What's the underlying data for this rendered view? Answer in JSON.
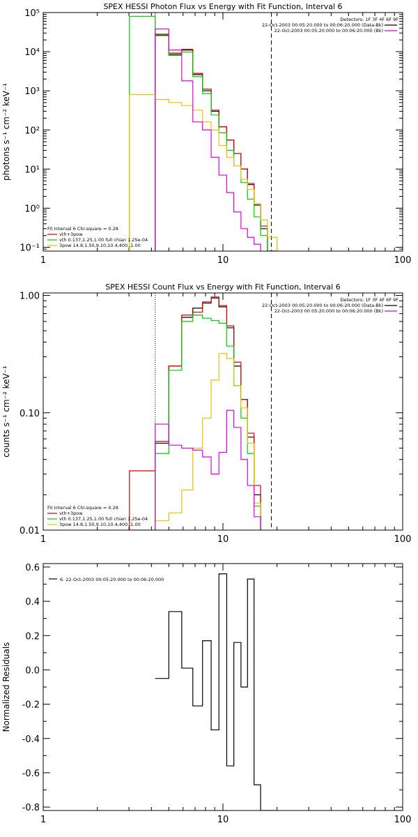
{
  "chart_data": [
    {
      "type": "line",
      "title": "SPEX HESSI Photon Flux vs Energy with Fit Function, Interval 6",
      "ylabel": "photons s⁻¹ cm⁻² keV⁻¹",
      "xlabel": "",
      "xscale": "log",
      "yscale": "log",
      "xlim": [
        1,
        100
      ],
      "ylim": [
        0.08,
        100000
      ],
      "xtick_labels": [
        "1",
        "10",
        "100"
      ],
      "ytick_labels": [
        "10⁻¹",
        "10⁰",
        "10¹",
        "10²",
        "10³",
        "10⁴",
        "10⁵"
      ],
      "legend_top": [
        "Detectors: 1F 3F 4F 6F 9F",
        "22-Oct-2003 00:05:20.000 to 00:06:20.000 (Data-Bk)",
        "22-Oct-2003 00:05:20.000 to 00:06:20.000 (Bk)"
      ],
      "legend_bottom": [
        "Fit Interval  6    Chi-square = 0.28",
        "vth+3pow",
        "vth 0.137,1.25,1.00  full chian 1.25e-04",
        "3pow 14.8,1.50,9.10,10.4,400.,1.00"
      ],
      "vlines": [
        {
          "x": 4.2,
          "color": "magenta",
          "style": "solid"
        },
        {
          "x": 18.6,
          "color": "black",
          "style": "dashed"
        }
      ],
      "edges": [
        3.02,
        4.2,
        5.0,
        5.9,
        6.8,
        7.7,
        8.6,
        9.5,
        10.5,
        11.5,
        12.6,
        13.7,
        14.9,
        16.2,
        17.7,
        20.0
      ],
      "series": [
        {
          "name": "Data-Bk",
          "color": "#000000",
          "values": [
            null,
            26000,
            8500,
            11000,
            2600,
            1000,
            300,
            120,
            55,
            25,
            10,
            4,
            1.2,
            0.3,
            0.08
          ]
        },
        {
          "name": "vth+3pow",
          "color": "#cc0000",
          "values": [
            null,
            28000,
            9200,
            11500,
            2800,
            1100,
            320,
            120,
            55,
            25,
            10,
            4.3,
            1.3,
            0.35,
            0.08
          ]
        },
        {
          "name": "vth",
          "color": "#00cc00",
          "values": [
            80000,
            27000,
            8000,
            9800,
            2300,
            850,
            240,
            85,
            30,
            12,
            4.5,
            1.7,
            0.6,
            0.2,
            null
          ]
        },
        {
          "name": "3pow",
          "color": "#e6c300",
          "values": [
            800,
            600,
            500,
            420,
            320,
            160,
            100,
            40,
            20,
            12,
            5.5,
            3,
            1.3,
            0.5,
            0.18
          ]
        },
        {
          "name": "Bk",
          "color": "#dd00dd",
          "values": [
            null,
            38000,
            11000,
            1800,
            160,
            100,
            20,
            7,
            2.5,
            0.8,
            0.3,
            0.18,
            0.12,
            null,
            null
          ]
        }
      ]
    },
    {
      "type": "line",
      "title": "SPEX HESSI Count Flux vs Energy with Fit Function, Interval 6",
      "ylabel": "counts s⁻¹ cm⁻² keV⁻¹",
      "xlabel": "",
      "xscale": "log",
      "yscale": "log",
      "xlim": [
        1,
        100
      ],
      "ylim": [
        0.01,
        1.05
      ],
      "xtick_labels": [
        "1",
        "10",
        "100"
      ],
      "ytick_labels": [
        "0.01",
        "0.10",
        "1.00"
      ],
      "legend_top": [
        "Detectors: 1F 3F 4F 6F 9F",
        "22-Oct-2003 00:05:20.000 to 00:06:20.000 (Data-Bk)",
        "22-Oct-2003 00:05:20.000 to 00:06:20.000 (Bk)"
      ],
      "legend_bottom": [
        "Fit Interval  6    Chi-square = 0.28",
        "vth+3pow",
        "vth 0.137,1.25,1.00  full chian 1.25e-04",
        "3pow 14.8,1.50,9.10,10.4,400.,1.00"
      ],
      "vlines": [
        {
          "x": 4.2,
          "color": "black",
          "style": "dotted"
        },
        {
          "x": 18.6,
          "color": "black",
          "style": "dashed"
        }
      ],
      "edges": [
        3.02,
        4.2,
        5.0,
        5.9,
        6.8,
        7.7,
        8.6,
        9.5,
        10.5,
        11.5,
        12.6,
        13.7,
        14.9,
        16.2,
        17.7,
        20.0
      ],
      "series": [
        {
          "name": "Data-Bk",
          "color": "#000000",
          "values": [
            null,
            0.055,
            0.25,
            0.65,
            0.78,
            0.86,
            0.95,
            0.8,
            0.53,
            0.25,
            0.13,
            0.062,
            0.02,
            null,
            null
          ]
        },
        {
          "name": "vth+3pow",
          "color": "#cc0000",
          "values": [
            0.032,
            0.057,
            0.25,
            0.68,
            0.72,
            0.88,
            0.97,
            0.82,
            0.55,
            0.27,
            0.13,
            0.067,
            0.024,
            null,
            null
          ]
        },
        {
          "name": "vth",
          "color": "#00cc00",
          "values": [
            null,
            0.045,
            0.23,
            0.6,
            0.68,
            0.64,
            0.61,
            0.58,
            0.37,
            0.17,
            0.09,
            0.045,
            0.016,
            null,
            null
          ]
        },
        {
          "name": "3pow",
          "color": "#e6c300",
          "values": [
            0.01,
            0.012,
            0.014,
            0.022,
            0.05,
            0.09,
            0.19,
            0.32,
            0.29,
            0.17,
            0.11,
            0.055,
            0.017,
            null,
            null
          ]
        },
        {
          "name": "Bk",
          "color": "#dd00dd",
          "values": [
            null,
            0.08,
            0.053,
            0.05,
            0.048,
            0.042,
            0.03,
            0.046,
            0.105,
            0.075,
            0.04,
            0.024,
            0.013,
            null,
            null
          ]
        }
      ]
    },
    {
      "type": "line",
      "title": "",
      "ylabel": "Normalized Residuals",
      "xlabel": "",
      "xscale": "log",
      "yscale": "linear",
      "xlim": [
        1,
        100
      ],
      "ylim": [
        -0.82,
        0.62
      ],
      "xtick_labels": [
        "1",
        "10",
        "100"
      ],
      "ytick_labels": [
        "-0.8",
        "-0.6",
        "-0.4",
        "-0.2",
        "0.0",
        "0.2",
        "0.4",
        "0.6"
      ],
      "yticks": [
        -0.8,
        -0.6,
        -0.4,
        -0.2,
        0.0,
        0.2,
        0.4,
        0.6
      ],
      "legend_top": [
        "6. 22-Oct-2003 00:05:20.000 to 00:06:20.000"
      ],
      "legend_bottom": [],
      "vlines": [],
      "edges": [
        4.2,
        5.0,
        5.9,
        6.8,
        7.7,
        8.6,
        9.5,
        10.5,
        11.5,
        12.6,
        13.7,
        14.9,
        16.2,
        17.7,
        20.0
      ],
      "series": [
        {
          "name": "6. 22-Oct-2003 00:05:20.000 to 00:06:20.000",
          "color": "#000000",
          "values": [
            -0.05,
            0.34,
            0.01,
            -0.21,
            0.17,
            -0.35,
            0.56,
            -0.56,
            0.16,
            -0.1,
            0.53,
            -0.67,
            -0.82,
            -0.82
          ]
        }
      ]
    }
  ]
}
